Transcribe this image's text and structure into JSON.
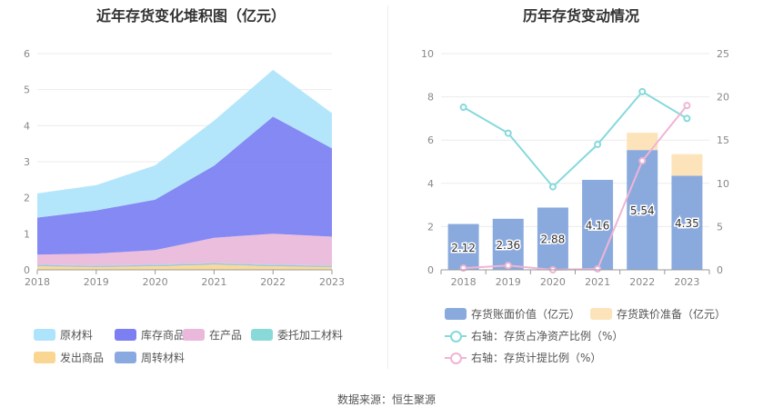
{
  "left_title": "近年存货变化堆积图（亿元）",
  "right_title": "历年存货变动情况",
  "footer": "数据来源：恒生聚源",
  "left_legend": [
    {
      "label": "原材料",
      "color": "#aee4fb"
    },
    {
      "label": "库存商品",
      "color": "#7b7ff2"
    },
    {
      "label": "在产品",
      "color": "#eab8db"
    },
    {
      "label": "委托加工材料",
      "color": "#8ad9d9"
    },
    {
      "label": "发出商品",
      "color": "#f9d792"
    },
    {
      "label": "周转材料",
      "color": "#8aa9e0"
    }
  ],
  "right_legend": [
    {
      "label": "存货账面价值（亿元）",
      "color": "#8aaade",
      "kind": "bar"
    },
    {
      "label": "存货跌价准备（亿元）",
      "color": "#fde3ba",
      "kind": "bar"
    },
    {
      "label": "右轴：存货占净资产比例（%）",
      "color": "#86d9dc",
      "kind": "line"
    },
    {
      "label": "右轴：存货计提比例（%）",
      "color": "#f0b4d6",
      "kind": "line"
    }
  ],
  "chart_data": [
    {
      "type": "area",
      "stacked": true,
      "title": "近年存货变化堆积图（亿元）",
      "x": [
        "2018",
        "2019",
        "2020",
        "2021",
        "2022",
        "2023"
      ],
      "ylim": [
        0,
        6
      ],
      "yticks": [
        0,
        1,
        2,
        3,
        4,
        5,
        6
      ],
      "grid": true,
      "legend_position": "bottom",
      "series": [
        {
          "name": "发出商品",
          "color": "#f9d792",
          "values": [
            0.1,
            0.08,
            0.1,
            0.15,
            0.1,
            0.08
          ]
        },
        {
          "name": "周转材料",
          "color": "#8aa9e0",
          "values": [
            0.02,
            0.02,
            0.02,
            0.02,
            0.02,
            0.02
          ]
        },
        {
          "name": "委托加工材料",
          "color": "#8ad9d9",
          "values": [
            0.02,
            0.02,
            0.02,
            0.02,
            0.02,
            0.02
          ]
        },
        {
          "name": "在产品",
          "color": "#eab8db",
          "values": [
            0.28,
            0.33,
            0.41,
            0.7,
            0.86,
            0.8
          ]
        },
        {
          "name": "库存商品",
          "color": "#7b7ff2",
          "values": [
            1.03,
            1.2,
            1.4,
            2.0,
            3.25,
            2.45
          ]
        },
        {
          "name": "原材料",
          "color": "#aee4fb",
          "values": [
            0.67,
            0.7,
            0.95,
            1.25,
            1.3,
            0.98
          ]
        }
      ]
    },
    {
      "type": "bar",
      "title": "历年存货变动情况",
      "x": [
        "2018",
        "2019",
        "2020",
        "2021",
        "2022",
        "2023"
      ],
      "ylim": [
        0,
        10
      ],
      "yticks": [
        0,
        2,
        4,
        6,
        8,
        10
      ],
      "y2lim": [
        0,
        25
      ],
      "y2ticks": [
        0,
        5,
        10,
        15,
        20,
        25
      ],
      "grid": true,
      "legend_position": "bottom",
      "series": [
        {
          "name": "存货账面价值（亿元）",
          "kind": "bar",
          "axis": "left",
          "color": "#8aaade",
          "values": [
            2.12,
            2.36,
            2.88,
            4.16,
            5.54,
            4.35
          ],
          "labels": [
            "2.12",
            "2.36",
            "2.88",
            "4.16",
            "5.54",
            "4.35"
          ]
        },
        {
          "name": "存货跌价准备（亿元）",
          "kind": "bar-stack",
          "axis": "left",
          "color": "#fde3ba",
          "values": [
            0.0,
            0.0,
            0.0,
            0.0,
            0.8,
            1.0
          ]
        },
        {
          "name": "右轴：存货占净资产比例（%）",
          "kind": "line",
          "axis": "right",
          "color": "#86d9dc",
          "values": [
            18.8,
            15.8,
            9.6,
            14.5,
            20.6,
            17.5
          ]
        },
        {
          "name": "右轴：存货计提比例（%）",
          "kind": "line",
          "axis": "right",
          "color": "#f0b4d6",
          "values": [
            0.2,
            0.5,
            0.0,
            0.1,
            12.6,
            19.0
          ]
        }
      ]
    }
  ]
}
